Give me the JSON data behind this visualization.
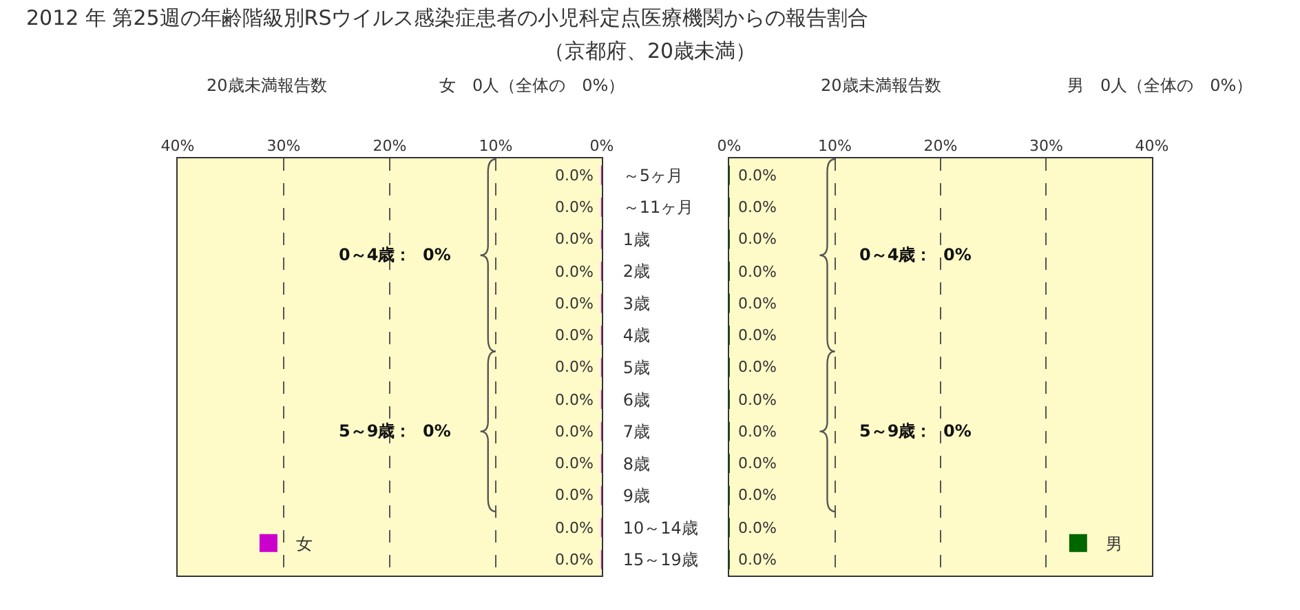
{
  "chart_data": [
    {
      "type": "bar",
      "orientation": "horizontal",
      "title": "2012 年 第25週の年齢階級別RSウイルス感染症患者の小児科定点医療機関からの報告割合",
      "subtitle": "（京都府、20歳未満）",
      "categories": [
        "～5ヶ月",
        "～11ヶ月",
        "1歳",
        "2歳",
        "3歳",
        "4歳",
        "5歳",
        "6歳",
        "7歳",
        "8歳",
        "9歳",
        "10～14歳",
        "15～19歳"
      ],
      "series": [
        {
          "name": "女",
          "color": "#cc00cc",
          "values": [
            0,
            0,
            0,
            0,
            0,
            0,
            0,
            0,
            0,
            0,
            0,
            0,
            0
          ],
          "value_labels": [
            "0.0%",
            "0.0%",
            "0.0%",
            "0.0%",
            "0.0%",
            "0.0%",
            "0.0%",
            "0.0%",
            "0.0%",
            "0.0%",
            "0.0%",
            "0.0%",
            "0.0%"
          ]
        }
      ],
      "xlim": [
        40,
        0
      ],
      "xticks": [
        {
          "value": 40,
          "label": "40%"
        },
        {
          "value": 30,
          "label": "30%"
        },
        {
          "value": 20,
          "label": "20%"
        },
        {
          "value": 10,
          "label": "10%"
        },
        {
          "value": 0,
          "label": "0%"
        }
      ],
      "grid": "x",
      "legend": "bottom left",
      "annotations": [
        "20歳未満報告数",
        "女　0人（全体の　0%）",
        "0～4歳：  0%",
        "5～9歳：  0%"
      ]
    },
    {
      "type": "bar",
      "orientation": "horizontal",
      "categories": [
        null,
        null,
        null,
        null,
        null,
        null,
        null,
        null,
        null,
        null,
        null,
        null,
        null
      ],
      "series": [
        {
          "name": "男",
          "color": "#006600",
          "values": [
            0,
            0,
            0,
            0,
            0,
            0,
            0,
            0,
            0,
            0,
            0,
            0,
            0
          ],
          "value_labels": [
            "0.0%",
            "0.0%",
            "0.0%",
            "0.0%",
            "0.0%",
            "0.0%",
            "0.0%",
            "0.0%",
            "0.0%",
            "0.0%",
            "0.0%",
            "0.0%",
            "0.0%"
          ]
        }
      ],
      "xlim": [
        0,
        40
      ],
      "xticks": [
        {
          "value": 0,
          "label": "0%"
        },
        {
          "value": 10,
          "label": "10%"
        },
        {
          "value": 20,
          "label": "20%"
        },
        {
          "value": 30,
          "label": "30%"
        },
        {
          "value": 40,
          "label": "40%"
        }
      ],
      "grid": "x",
      "legend": "bottom right",
      "tick_labels": "x",
      "annotations": [
        "20歳未満報告数",
        "男　0人（全体の　0%）",
        "0～4歳：  0%",
        "5～9歳：  0%"
      ]
    }
  ]
}
